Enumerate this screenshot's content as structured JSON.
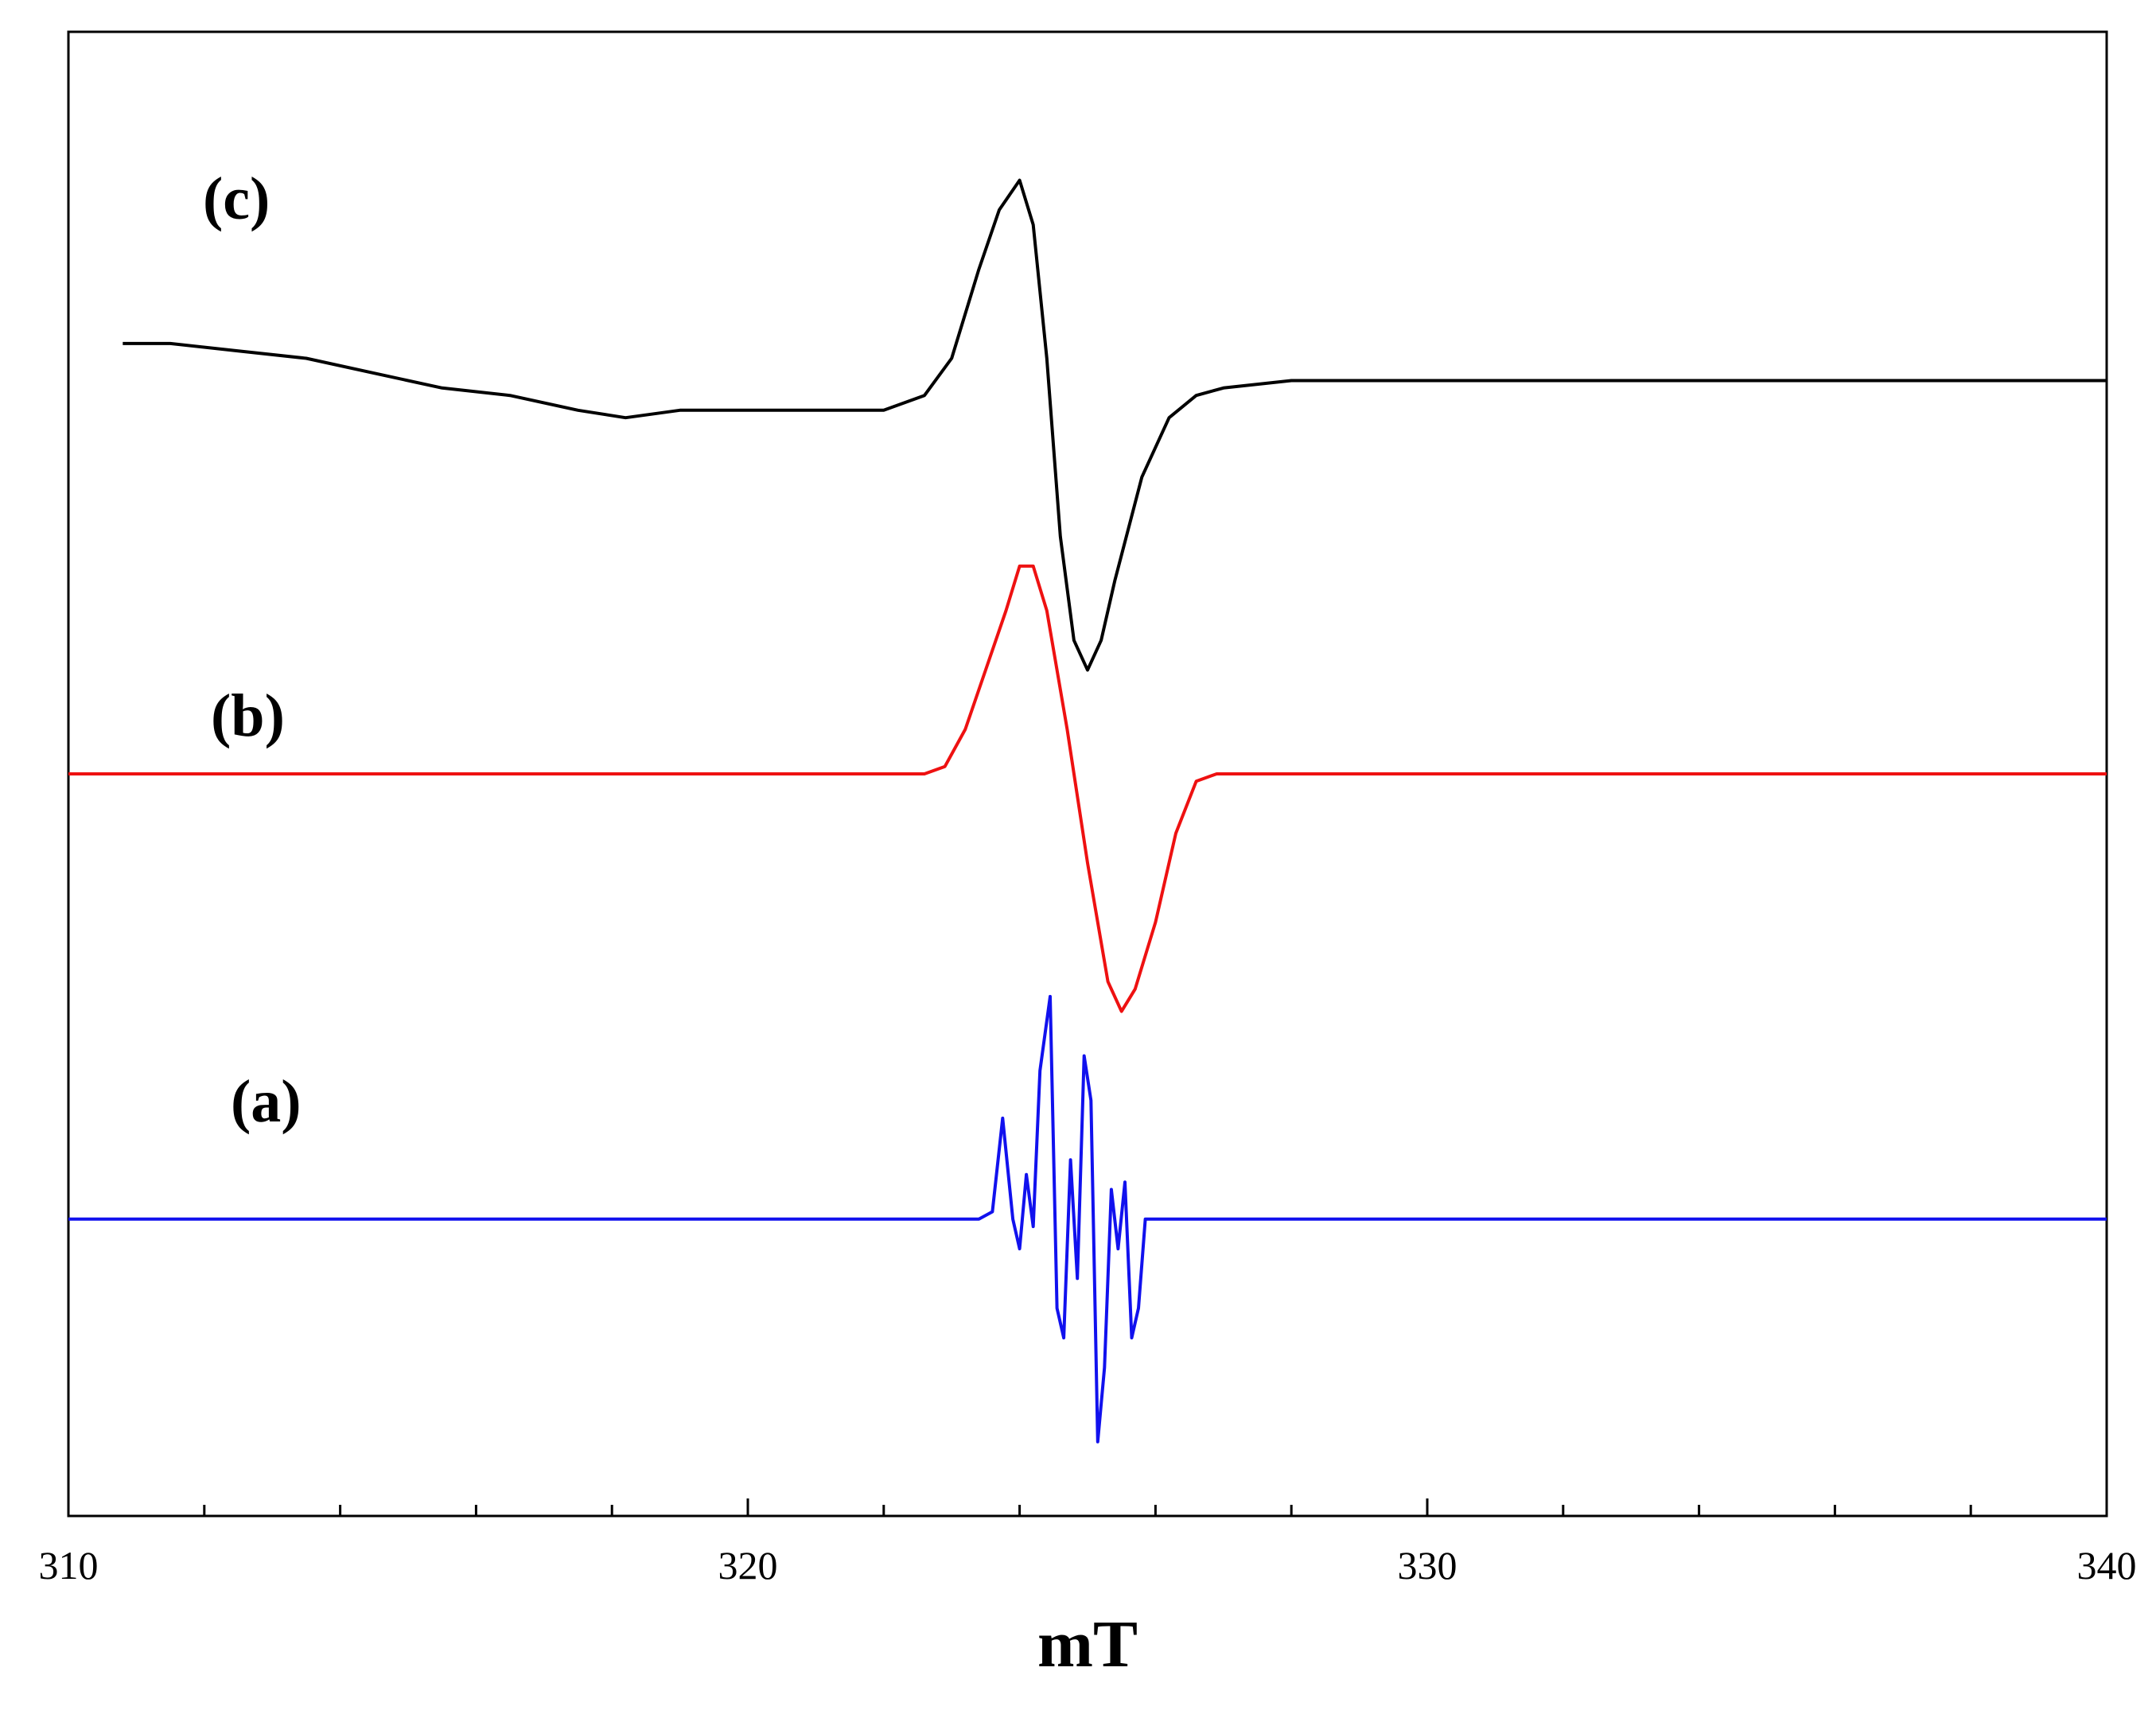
{
  "chart_data": {
    "type": "line",
    "title": "",
    "xlabel": "mT",
    "ylabel": "",
    "xlim": [
      310,
      340
    ],
    "x_ticks": [
      310,
      320,
      330,
      340
    ],
    "x_tick_labels": [
      "310",
      "320",
      "330",
      "340"
    ],
    "y_ticks_shown": false,
    "grid": false,
    "legend": "none",
    "series": [
      {
        "label": "(c)",
        "color": "#000000",
        "x": [
          310.8,
          311.5,
          312.5,
          313.5,
          314.5,
          315.5,
          316.5,
          317.5,
          318.2,
          319.0,
          320.0,
          321.0,
          322.0,
          322.6,
          323.0,
          323.4,
          323.7,
          324.0,
          324.2,
          324.4,
          324.6,
          324.8,
          325.0,
          325.2,
          325.4,
          325.8,
          326.2,
          326.6,
          327.0,
          328.0,
          329.0,
          330.0,
          331.0,
          332.0,
          333.0,
          334.0,
          335.0,
          336.0,
          337.0,
          338.0,
          339.0,
          340.0
        ],
        "y": [
          0.79,
          0.79,
          0.785,
          0.78,
          0.77,
          0.76,
          0.755,
          0.745,
          0.74,
          0.745,
          0.745,
          0.745,
          0.745,
          0.755,
          0.78,
          0.84,
          0.88,
          0.9,
          0.87,
          0.78,
          0.66,
          0.59,
          0.57,
          0.59,
          0.63,
          0.7,
          0.74,
          0.755,
          0.76,
          0.765,
          0.765,
          0.765,
          0.765,
          0.765,
          0.765,
          0.765,
          0.765,
          0.765,
          0.765,
          0.765,
          0.765,
          0.765
        ]
      },
      {
        "label": "(b)",
        "color": "#ee1111",
        "x": [
          310.0,
          322.6,
          322.9,
          323.2,
          323.5,
          323.8,
          324.0,
          324.2,
          324.4,
          324.7,
          325.0,
          325.3,
          325.5,
          325.7,
          326.0,
          326.3,
          326.6,
          326.9,
          327.5,
          340.0
        ],
        "y": [
          0.5,
          0.5,
          0.505,
          0.53,
          0.57,
          0.61,
          0.64,
          0.64,
          0.61,
          0.53,
          0.44,
          0.36,
          0.34,
          0.355,
          0.4,
          0.46,
          0.495,
          0.5,
          0.5,
          0.5
        ]
      },
      {
        "label": "(a)",
        "color": "#1111ee",
        "x": [
          310.0,
          323.4,
          323.6,
          323.75,
          323.9,
          324.0,
          324.1,
          324.2,
          324.3,
          324.45,
          324.55,
          324.65,
          324.75,
          324.85,
          324.95,
          325.05,
          325.15,
          325.25,
          325.35,
          325.45,
          325.55,
          325.65,
          325.75,
          325.85,
          325.95,
          326.1,
          340.0
        ],
        "y": [
          0.2,
          0.2,
          0.205,
          0.268,
          0.2,
          0.18,
          0.23,
          0.195,
          0.3,
          0.35,
          0.14,
          0.12,
          0.24,
          0.16,
          0.31,
          0.28,
          0.05,
          0.1,
          0.22,
          0.18,
          0.225,
          0.12,
          0.14,
          0.2,
          0.2,
          0.2,
          0.2
        ]
      }
    ]
  }
}
